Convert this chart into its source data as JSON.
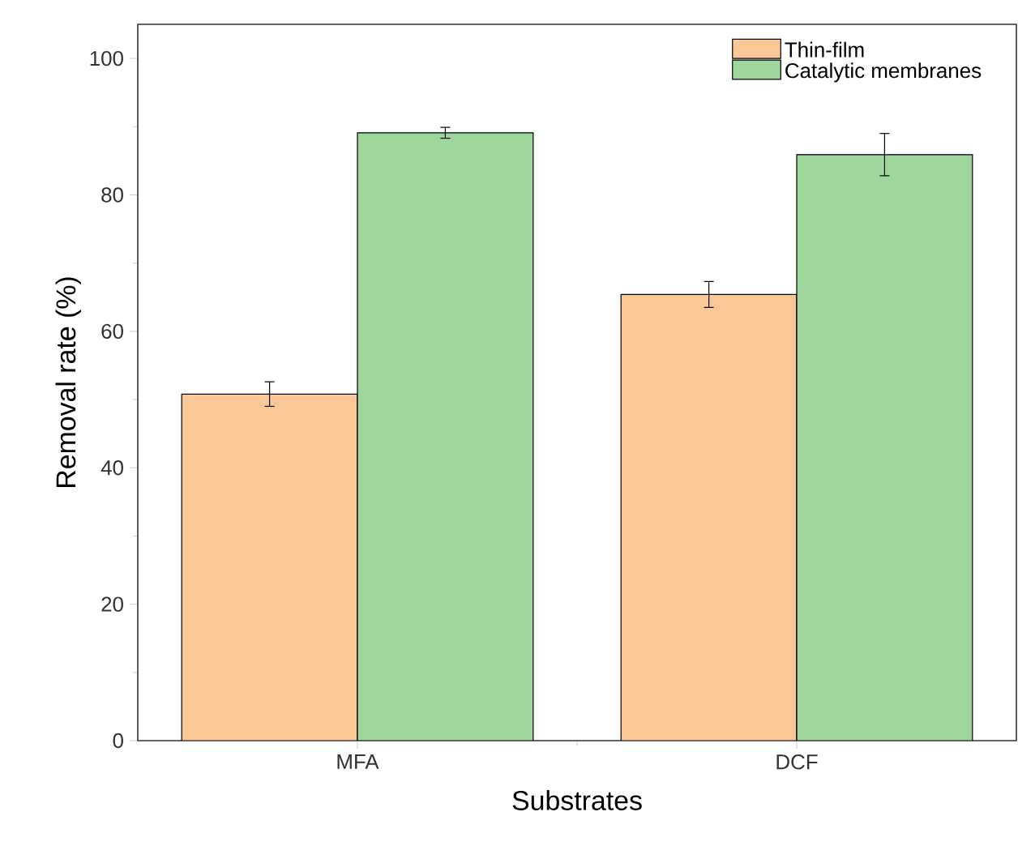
{
  "chart_data": {
    "type": "bar",
    "xlabel": "Substrates",
    "ylabel": "Removal rate (%)",
    "categories": [
      "MFA",
      "DCF"
    ],
    "series": [
      {
        "name": "Thin-film",
        "color": "#fac897",
        "values": [
          50.8,
          65.4
        ],
        "errors": [
          1.8,
          1.9
        ]
      },
      {
        "name": "Catalytic membranes",
        "color": "#9fd69c",
        "values": [
          89.1,
          85.9
        ],
        "errors": [
          0.8,
          3.1
        ]
      }
    ],
    "ylim": [
      0,
      105
    ],
    "yticks": [
      0,
      20,
      40,
      60,
      80,
      100
    ],
    "grid": false,
    "legend": "top right"
  }
}
